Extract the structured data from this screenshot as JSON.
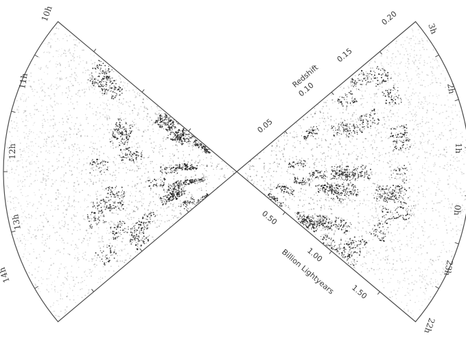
{
  "diagram": {
    "colors": {
      "outline": "#4a4a4a",
      "galaxy": "#1a1a1a",
      "label": "#3a3a3a",
      "background": "#ffffff"
    },
    "redshift_axis": {
      "title": "Redshift",
      "ticks": [
        "0.05",
        "0.10",
        "0.15",
        "0.20"
      ]
    },
    "distance_axis": {
      "title": "Billion Lightyears",
      "ticks": [
        "0.50",
        "1.00",
        "1.50"
      ]
    },
    "left_wedge_ra_labels": [
      "10h",
      "11h",
      "12h",
      "13h",
      "14h"
    ],
    "right_wedge_ra_labels": [
      "3h",
      "2h",
      "1h",
      "0h",
      "23h",
      "22h"
    ]
  }
}
